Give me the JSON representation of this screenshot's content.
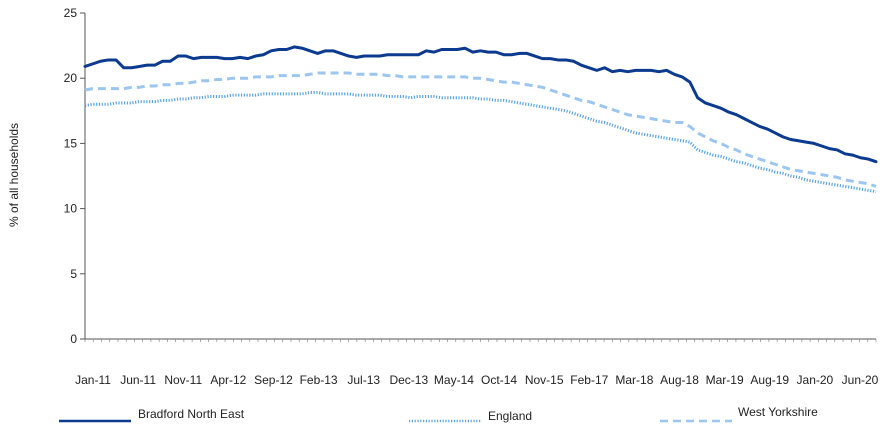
{
  "chart_data": {
    "type": "line",
    "title": "",
    "xlabel": "",
    "ylabel": "% of all households",
    "ylim": [
      0,
      25
    ],
    "yticks": [
      0,
      5,
      10,
      15,
      20,
      25
    ],
    "x_tick_labels": [
      "Jan-11",
      "Jun-11",
      "Nov-11",
      "Apr-12",
      "Sep-12",
      "Feb-13",
      "Jul-13",
      "Dec-13",
      "May-14",
      "Oct-14",
      "Nov-15",
      "Feb-17",
      "Mar-18",
      "Aug-18",
      "Mar-19",
      "Aug-19",
      "Jan-20",
      "Jun-20"
    ],
    "grid": false,
    "legend_position": "bottom",
    "series": [
      {
        "name": "Bradford North East",
        "color": "#0b3a8f",
        "style": "solid",
        "values": [
          20.9,
          21.1,
          21.3,
          21.4,
          21.4,
          20.8,
          20.8,
          20.9,
          21.0,
          21.0,
          21.3,
          21.3,
          21.7,
          21.7,
          21.5,
          21.6,
          21.6,
          21.6,
          21.5,
          21.5,
          21.6,
          21.5,
          21.7,
          21.8,
          22.1,
          22.2,
          22.2,
          22.4,
          22.3,
          22.1,
          21.9,
          22.1,
          22.1,
          21.9,
          21.7,
          21.6,
          21.7,
          21.7,
          21.7,
          21.8,
          21.8,
          21.8,
          21.8,
          21.8,
          22.1,
          22.0,
          22.2,
          22.2,
          22.2,
          22.3,
          22.0,
          22.1,
          22.0,
          22.0,
          21.8,
          21.8,
          21.9,
          21.9,
          21.7,
          21.5,
          21.5,
          21.4,
          21.4,
          21.3,
          21.0,
          20.8,
          20.6,
          20.8,
          20.5,
          20.6,
          20.5,
          20.6,
          20.6,
          20.6,
          20.5,
          20.6,
          20.3,
          20.1,
          19.7,
          18.5,
          18.1,
          17.9,
          17.7,
          17.4,
          17.2,
          16.9,
          16.6,
          16.3,
          16.1,
          15.8,
          15.5,
          15.3,
          15.2,
          15.1,
          15.0,
          14.8,
          14.6,
          14.5,
          14.2,
          14.1,
          13.9,
          13.8,
          13.6
        ]
      },
      {
        "name": "England",
        "color": "#5aa3e8",
        "style": "dotted",
        "values": [
          17.9,
          18.0,
          18.0,
          18.0,
          18.1,
          18.1,
          18.1,
          18.2,
          18.2,
          18.2,
          18.3,
          18.3,
          18.4,
          18.4,
          18.5,
          18.5,
          18.6,
          18.6,
          18.6,
          18.7,
          18.7,
          18.7,
          18.7,
          18.8,
          18.8,
          18.8,
          18.8,
          18.8,
          18.8,
          18.9,
          18.9,
          18.8,
          18.8,
          18.8,
          18.8,
          18.7,
          18.7,
          18.7,
          18.7,
          18.6,
          18.6,
          18.6,
          18.5,
          18.6,
          18.6,
          18.6,
          18.5,
          18.5,
          18.5,
          18.5,
          18.5,
          18.4,
          18.4,
          18.3,
          18.3,
          18.2,
          18.1,
          18.0,
          17.9,
          17.8,
          17.7,
          17.6,
          17.5,
          17.3,
          17.1,
          16.9,
          16.7,
          16.6,
          16.4,
          16.2,
          16.0,
          15.8,
          15.7,
          15.6,
          15.5,
          15.4,
          15.3,
          15.2,
          15.1,
          14.5,
          14.3,
          14.1,
          14.0,
          13.8,
          13.6,
          13.5,
          13.3,
          13.1,
          13.0,
          12.8,
          12.7,
          12.5,
          12.4,
          12.2,
          12.1,
          12.0,
          11.9,
          11.8,
          11.7,
          11.6,
          11.5,
          11.4,
          11.3
        ]
      },
      {
        "name": "West Yorkshire",
        "color": "#9cc6f0",
        "style": "dashed",
        "values": [
          19.1,
          19.2,
          19.2,
          19.2,
          19.2,
          19.2,
          19.3,
          19.3,
          19.4,
          19.4,
          19.5,
          19.5,
          19.6,
          19.6,
          19.7,
          19.8,
          19.8,
          19.9,
          19.9,
          20.0,
          20.0,
          20.0,
          20.1,
          20.1,
          20.1,
          20.2,
          20.2,
          20.2,
          20.2,
          20.3,
          20.4,
          20.4,
          20.4,
          20.4,
          20.4,
          20.3,
          20.3,
          20.3,
          20.3,
          20.2,
          20.2,
          20.1,
          20.1,
          20.1,
          20.1,
          20.1,
          20.1,
          20.1,
          20.1,
          20.1,
          20.0,
          20.0,
          19.9,
          19.8,
          19.7,
          19.7,
          19.6,
          19.5,
          19.4,
          19.3,
          19.1,
          18.9,
          18.7,
          18.5,
          18.3,
          18.2,
          18.0,
          17.8,
          17.6,
          17.4,
          17.2,
          17.1,
          17.0,
          16.9,
          16.8,
          16.7,
          16.6,
          16.6,
          16.3,
          15.8,
          15.5,
          15.2,
          15.0,
          14.7,
          14.5,
          14.2,
          14.0,
          13.8,
          13.6,
          13.4,
          13.2,
          13.0,
          12.9,
          12.8,
          12.7,
          12.6,
          12.5,
          12.4,
          12.2,
          12.1,
          12.0,
          11.9,
          11.7
        ]
      }
    ]
  }
}
